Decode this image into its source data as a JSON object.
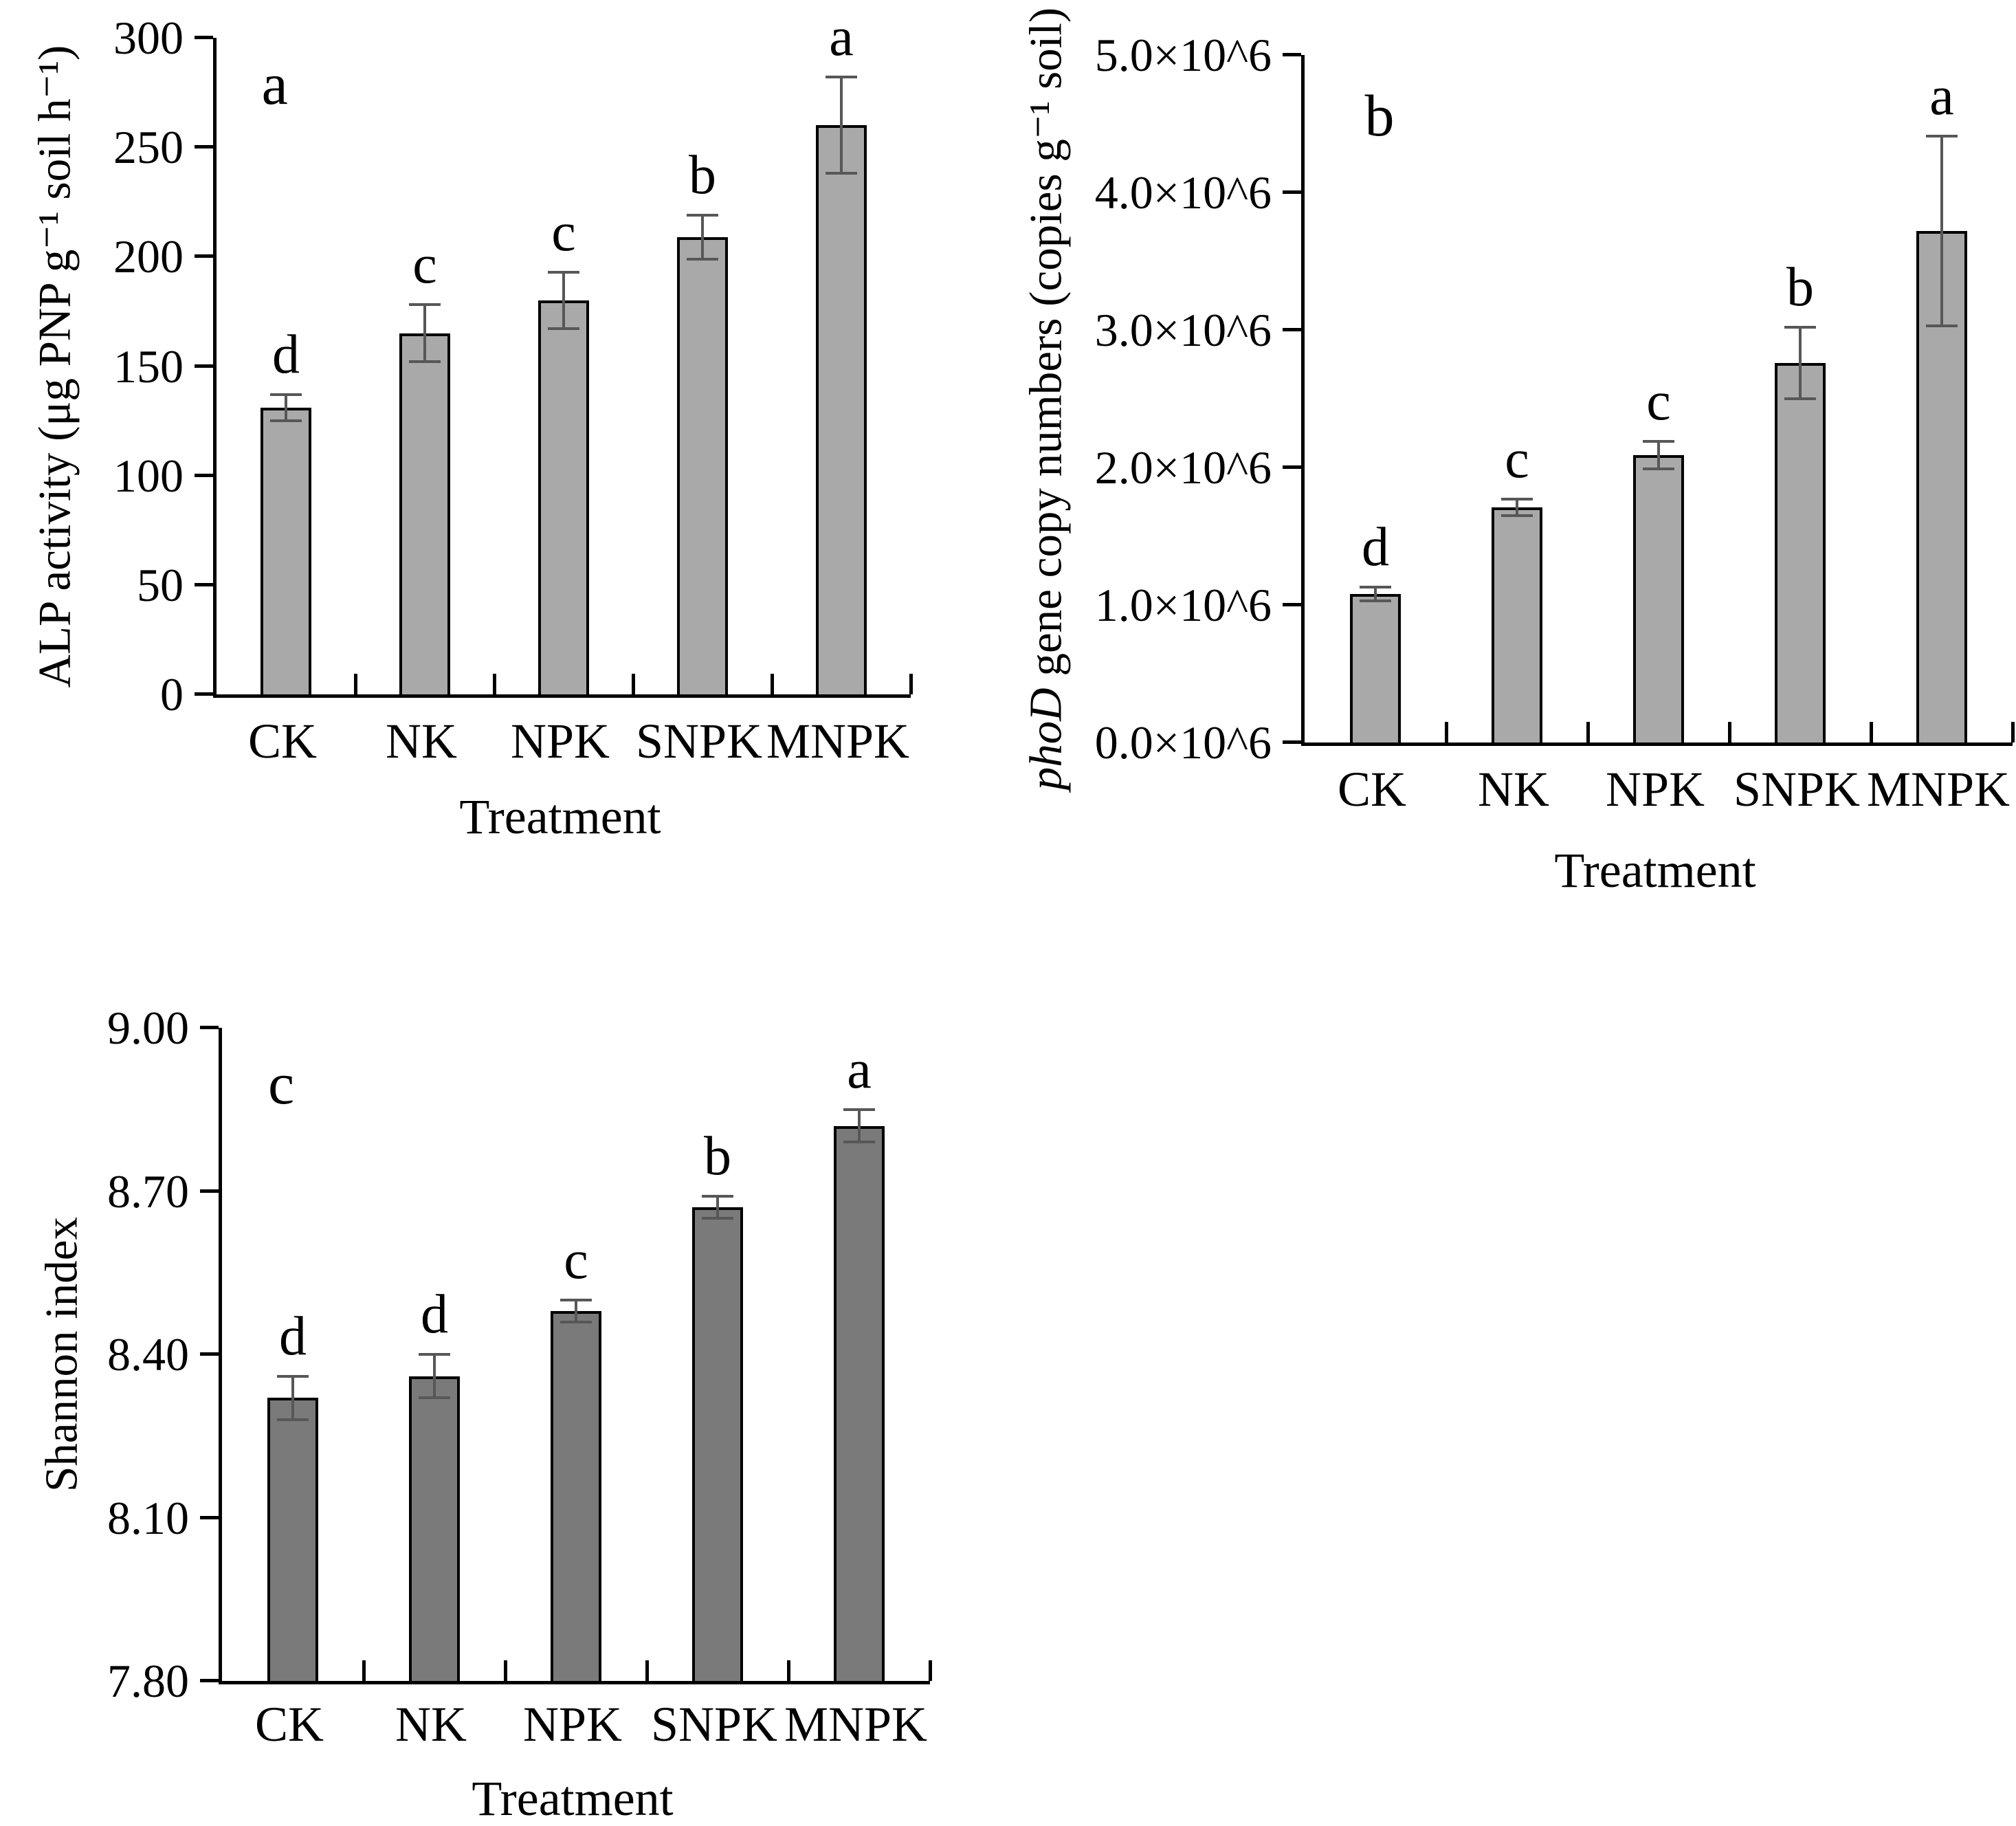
{
  "figure": {
    "background": "#ffffff",
    "text_color": "#000000"
  },
  "chart_data": [
    {
      "type": "bar",
      "panel_letter": "a",
      "categories": [
        "CK",
        "NK",
        "NPK",
        "SNPK",
        "MNPK"
      ],
      "values": [
        131,
        165,
        180,
        209,
        260
      ],
      "errors": [
        6,
        13,
        13,
        10,
        22
      ],
      "sig_letters": [
        "d",
        "c",
        "c",
        "b",
        "a"
      ],
      "ylabel": [
        {
          "text": "ALP activity (μg PNP g⁻¹ soil h⁻¹)",
          "italic": false
        }
      ],
      "xlabel": "Treatment",
      "ylim": [
        0,
        300
      ],
      "yticks": [
        0,
        50,
        100,
        150,
        200,
        250,
        300
      ],
      "ytick_labels": [
        "0",
        "50",
        "100",
        "150",
        "200",
        "250",
        "300"
      ],
      "grid": false,
      "legend": "none",
      "bar_color": "#a9a9a9",
      "bar_border_color": "#000000",
      "error_color": "#575757"
    },
    {
      "type": "bar",
      "panel_letter": "b",
      "categories": [
        "CK",
        "NK",
        "NPK",
        "SNPK",
        "MNPK"
      ],
      "values": [
        1080000,
        1710000,
        2090000,
        2760000,
        3720000
      ],
      "errors": [
        50000,
        60000,
        100000,
        260000,
        690000
      ],
      "sig_letters": [
        "d",
        "c",
        "c",
        "b",
        "a"
      ],
      "ylabel": [
        {
          "text": "phoD",
          "italic": true
        },
        {
          "text": " gene copy numbers (copies g⁻¹ soil)",
          "italic": false
        }
      ],
      "xlabel": "Treatment",
      "ylim": [
        0,
        5000000
      ],
      "yticks": [
        0,
        1000000,
        2000000,
        3000000,
        4000000,
        5000000
      ],
      "ytick_labels": [
        "0.0×10^6",
        "1.0×10^6",
        "2.0×10^6",
        "3.0×10^6",
        "4.0×10^6",
        "5.0×10^6"
      ],
      "grid": false,
      "legend": "none",
      "bar_color": "#a9a9a9",
      "bar_border_color": "#000000",
      "error_color": "#575757"
    },
    {
      "type": "bar",
      "panel_letter": "c",
      "categories": [
        "CK",
        "NK",
        "NPK",
        "SNPK",
        "MNPK"
      ],
      "values": [
        8.32,
        8.36,
        8.48,
        8.67,
        8.82
      ],
      "errors": [
        0.04,
        0.04,
        0.02,
        0.02,
        0.03
      ],
      "sig_letters": [
        "d",
        "d",
        "c",
        "b",
        "a"
      ],
      "ylabel": [
        {
          "text": "Shannon index",
          "italic": false
        }
      ],
      "xlabel": "Treatment",
      "ylim": [
        7.8,
        9.0
      ],
      "yticks": [
        7.8,
        8.1,
        8.4,
        8.7,
        9.0
      ],
      "ytick_labels": [
        "7.80",
        "8.10",
        "8.40",
        "8.70",
        "9.00"
      ],
      "grid": false,
      "legend": "none",
      "bar_color": "#7a7a7a",
      "bar_border_color": "#000000",
      "error_color": "#575757"
    }
  ]
}
